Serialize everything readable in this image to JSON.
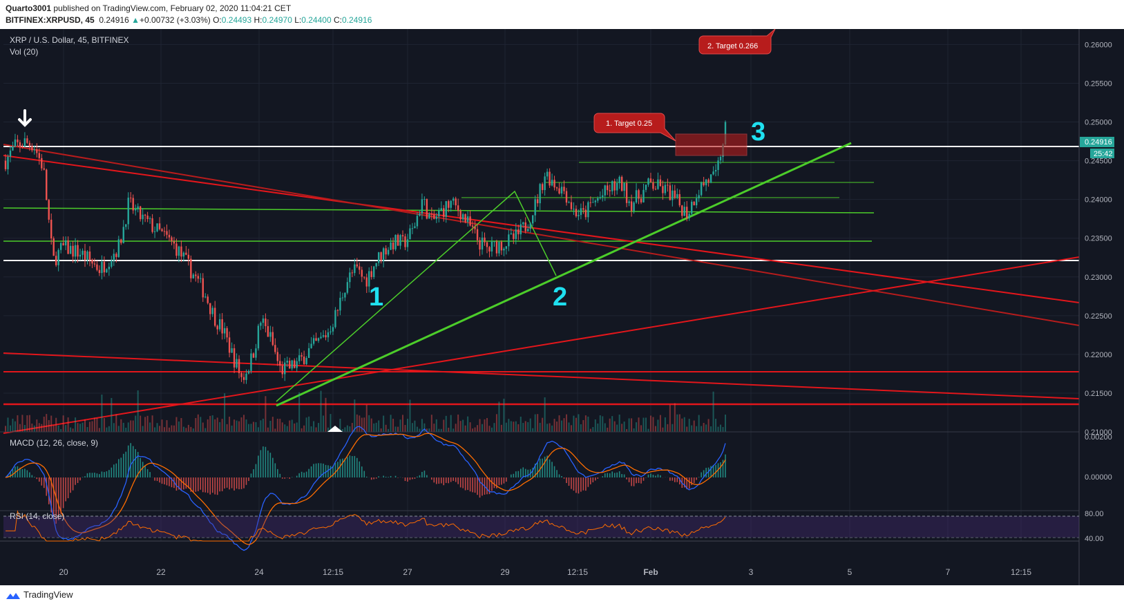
{
  "header": {
    "author": "Quarto3001",
    "published_text": "published on TradingView.com, February 02, 2020 11:04:21 CET",
    "symbol_line": "BITFINEX:XRPUSD, 45",
    "last": "0.24916",
    "change": "+0.00732 (+3.03%)",
    "o_label": "O:",
    "o_val": "0.24493",
    "h_label": "H:",
    "h_val": "0.24970",
    "l_label": "L:",
    "l_val": "0.24400",
    "c_label": "C:",
    "c_val": "0.24916"
  },
  "legend": {
    "main": "XRP / U.S. Dollar, 45, BITFINEX",
    "vol": "Vol (20)",
    "macd": "MACD (12, 26, close, 9)",
    "rsi": "RSI (14, close)"
  },
  "annotations": {
    "target1": "1. Target 0.25",
    "target2": "2. Target 0.266",
    "wave1": "1",
    "wave2": "2",
    "wave3": "3"
  },
  "price_badge": {
    "price": "0.24916",
    "countdown": "25:42"
  },
  "footer": {
    "brand": "TradingView"
  },
  "colors": {
    "background": "#131722",
    "up": "#26a69a",
    "down": "#ef5350",
    "red_line": "#e3161b",
    "green_line": "#4ccd2a",
    "wave_label": "#1fe0f0",
    "badge_bg": "#26a69a",
    "target_box": "#b71c1c"
  },
  "chart_data": {
    "type": "candlestick",
    "price_axis": [
      "0.26000",
      "0.25500",
      "0.25000",
      "0.24500",
      "0.24000",
      "0.23500",
      "0.23000",
      "0.22500",
      "0.22000",
      "0.21500",
      "0.21000"
    ],
    "time_axis": [
      "20",
      "22",
      "24",
      "12:15",
      "27",
      "29",
      "12:15",
      "Feb",
      "3",
      "5",
      "7",
      "12:15"
    ],
    "macd_axis": [
      "0.00200",
      "0.00000"
    ],
    "rsi_axis": [
      "80.00",
      "40.00"
    ],
    "ylim": [
      0.21,
      0.262
    ],
    "series": [
      {
        "name": "XRP / U.S. Dollar",
        "close_path": [
          0.245,
          0.2468,
          0.2474,
          0.247,
          0.244,
          0.232,
          0.2338,
          0.2335,
          0.233,
          0.232,
          0.231,
          0.2325,
          0.234,
          0.2395,
          0.238,
          0.237,
          0.236,
          0.235,
          0.2338,
          0.232,
          0.23,
          0.228,
          0.225,
          0.223,
          0.2198,
          0.2168,
          0.2195,
          0.2245,
          0.222,
          0.218,
          0.2183,
          0.219,
          0.2205,
          0.2215,
          0.2228,
          0.2255,
          0.2295,
          0.231,
          0.2295,
          0.2318,
          0.2335,
          0.2345,
          0.2343,
          0.236,
          0.24,
          0.237,
          0.2385,
          0.2395,
          0.2385,
          0.2365,
          0.2345,
          0.2335,
          0.2342,
          0.2345,
          0.2352,
          0.2368,
          0.2395,
          0.2435,
          0.242,
          0.2412,
          0.2385,
          0.238,
          0.2395,
          0.2405,
          0.2415,
          0.242,
          0.2395,
          0.2405,
          0.242,
          0.2415,
          0.241,
          0.2395,
          0.2382,
          0.241,
          0.2425,
          0.2428,
          0.2492
        ]
      }
    ],
    "macd": {
      "label": "MACD (12, 26, close, 9)"
    },
    "rsi": {
      "label": "RSI (14, close)",
      "levels": [
        80,
        70,
        40
      ]
    }
  }
}
